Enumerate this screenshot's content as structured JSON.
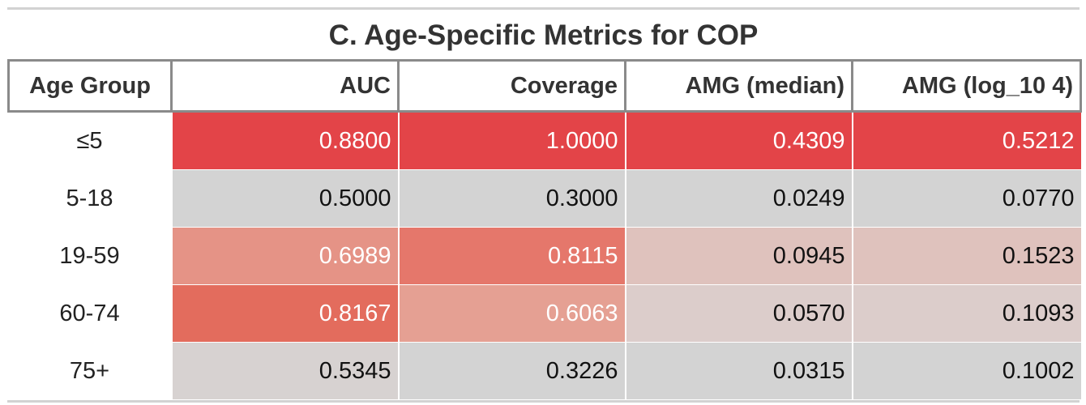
{
  "chart_data": {
    "type": "table",
    "title": "C. Age-Specific Metrics for COP",
    "columns": [
      "Age Group",
      "AUC",
      "Coverage",
      "AMG (median)",
      "AMG (log_10 4)"
    ],
    "rows": [
      {
        "age_group": "≤5",
        "cells": [
          {
            "text": "0.8800",
            "bg": "#e34448",
            "fg": "#ffffff"
          },
          {
            "text": "1.0000",
            "bg": "#e34448",
            "fg": "#ffffff"
          },
          {
            "text": "0.4309",
            "bg": "#e34448",
            "fg": "#ffffff"
          },
          {
            "text": "0.5212",
            "bg": "#e34448",
            "fg": "#ffffff"
          }
        ]
      },
      {
        "age_group": "5-18",
        "cells": [
          {
            "text": "0.5000",
            "bg": "#d3d3d3",
            "fg": "#111111"
          },
          {
            "text": "0.3000",
            "bg": "#d3d3d3",
            "fg": "#111111"
          },
          {
            "text": "0.0249",
            "bg": "#d3d3d3",
            "fg": "#111111"
          },
          {
            "text": "0.0770",
            "bg": "#d3d3d3",
            "fg": "#111111"
          }
        ]
      },
      {
        "age_group": "19-59",
        "cells": [
          {
            "text": "0.6989",
            "bg": "#e59386",
            "fg": "#ffffff"
          },
          {
            "text": "0.8115",
            "bg": "#e5776b",
            "fg": "#ffffff"
          },
          {
            "text": "0.0945",
            "bg": "#dfc2bd",
            "fg": "#111111"
          },
          {
            "text": "0.1523",
            "bg": "#dfc2bd",
            "fg": "#111111"
          }
        ]
      },
      {
        "age_group": "60-74",
        "cells": [
          {
            "text": "0.8167",
            "bg": "#e36c5d",
            "fg": "#ffffff"
          },
          {
            "text": "0.6063",
            "bg": "#e5a093",
            "fg": "#ffffff"
          },
          {
            "text": "0.0570",
            "bg": "#dccdcb",
            "fg": "#111111"
          },
          {
            "text": "0.1093",
            "bg": "#dccdcb",
            "fg": "#111111"
          }
        ]
      },
      {
        "age_group": "75+",
        "cells": [
          {
            "text": "0.5345",
            "bg": "#d7d2d1",
            "fg": "#111111"
          },
          {
            "text": "0.3226",
            "bg": "#d3d3d3",
            "fg": "#111111"
          },
          {
            "text": "0.0315",
            "bg": "#d3d3d3",
            "fg": "#111111"
          },
          {
            "text": "0.1002",
            "bg": "#d3d3d3",
            "fg": "#111111"
          }
        ]
      }
    ]
  }
}
